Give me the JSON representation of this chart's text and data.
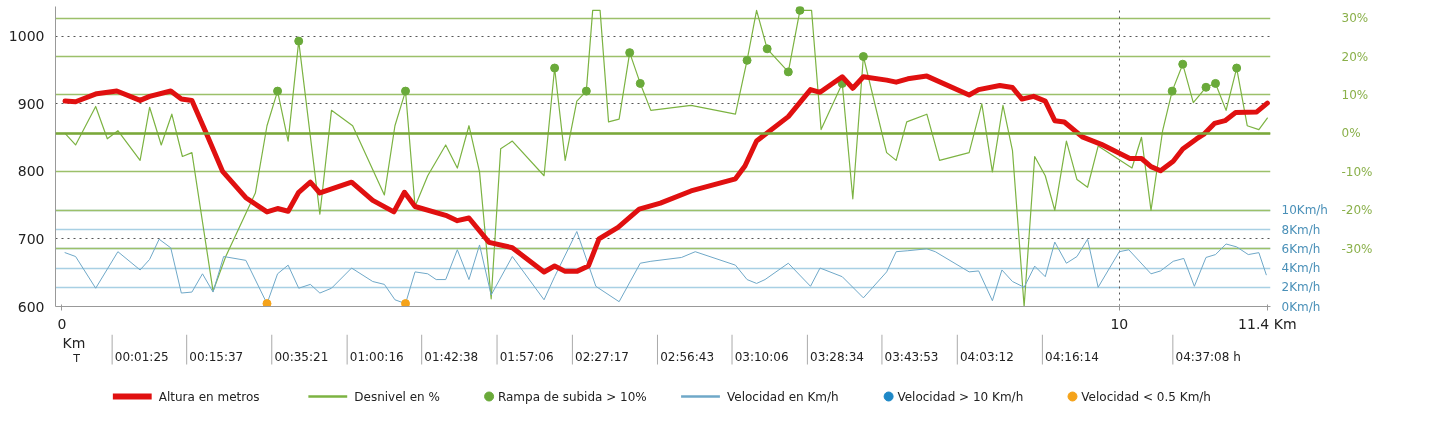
{
  "chart_data": {
    "type": "line",
    "xlim": [
      -0.06,
      11.43
    ],
    "xticks": [
      0,
      10,
      {
        "value": 11.4,
        "label": "11.4 Km"
      }
    ],
    "ylim": [
      600,
      1044
    ],
    "yticks": [
      600,
      700,
      800,
      900,
      1000
    ],
    "y2lim": [
      -45,
      33
    ],
    "y2ticks": [
      {
        "value": 30,
        "label": "30%"
      },
      {
        "value": 20,
        "label": "20%"
      },
      {
        "value": 10,
        "label": "10%"
      },
      {
        "value": 0,
        "label": "0%"
      },
      {
        "value": -10,
        "label": "-10%"
      },
      {
        "value": -20,
        "label": "-20%"
      },
      {
        "value": -30,
        "label": "-30%"
      }
    ],
    "y3lim": [
      0,
      31.2
    ],
    "y3ticks": [
      {
        "value": 10,
        "label": "10Km/h"
      },
      {
        "value": 8,
        "label": "8Km/h"
      },
      {
        "value": 6,
        "label": "6Km/h"
      },
      {
        "value": 4,
        "label": "4Km/h"
      },
      {
        "value": 2,
        "label": "2Km/h"
      },
      {
        "value": 0,
        "label": "0Km/h"
      }
    ],
    "grid": true,
    "legend": "bottom",
    "ref_lines": [
      {
        "axis": "y2",
        "value": 0,
        "color": "#7aa83a"
      }
    ],
    "annotations": [
      "Km",
      "T",
      "00:01:25",
      "00:15:37",
      "00:35:21",
      "01:00:16",
      "01:42:38",
      "01:57:06",
      "02:27:17",
      "02:56:43",
      "03:10:06",
      "03:28:34",
      "03:43:53",
      "04:03:12",
      "04:16:14",
      "04:37:08 h"
    ],
    "series": [
      {
        "name": "Altura en metros",
        "type": "line",
        "axis": "y",
        "color": "#e01010",
        "x": [
          0.03,
          0.13,
          0.33,
          0.52,
          0.74,
          0.83,
          1.03,
          1.13,
          1.23,
          1.37,
          1.52,
          1.74,
          1.94,
          2.04,
          2.14,
          2.24,
          2.35,
          2.44,
          2.74,
          2.94,
          3.14,
          3.24,
          3.34,
          3.63,
          3.74,
          3.85,
          4.04,
          4.26,
          4.56,
          4.66,
          4.76,
          4.87,
          4.98,
          5.08,
          5.26,
          5.46,
          5.66,
          5.95,
          6.37,
          6.46,
          6.57,
          6.87,
          7.08,
          7.17,
          7.38,
          7.48,
          7.58,
          7.8,
          7.89,
          8.0,
          8.18,
          8.58,
          8.67,
          8.87,
          8.99,
          9.08,
          9.19,
          9.3,
          9.39,
          9.48,
          9.65,
          9.83,
          10.1,
          10.21,
          10.3,
          10.39,
          10.51,
          10.6,
          10.73,
          10.8,
          10.9,
          11.0,
          11.1,
          11.3,
          11.4
        ],
        "values": [
          904,
          903,
          915,
          919,
          905,
          911,
          919,
          907,
          905,
          855,
          800,
          761,
          740,
          745,
          741,
          769,
          784,
          768,
          784,
          757,
          740,
          769,
          748,
          735,
          727,
          731,
          695,
          687,
          651,
          660,
          652,
          652,
          660,
          700,
          717,
          744,
          753,
          771,
          789,
          808,
          845,
          881,
          921,
          917,
          940,
          923,
          940,
          935,
          932,
          937,
          941,
          913,
          921,
          927,
          924,
          907,
          911,
          904,
          875,
          873,
          851,
          840,
          819,
          819,
          807,
          801,
          815,
          833,
          848,
          855,
          871,
          875,
          887,
          888,
          901
        ]
      },
      {
        "name": "Desnivel en %",
        "type": "line",
        "axis": "y2",
        "color": "#7cb342",
        "x": [
          0.03,
          0.13,
          0.32,
          0.43,
          0.53,
          0.74,
          0.83,
          0.94,
          1.04,
          1.14,
          1.23,
          1.43,
          1.55,
          1.83,
          1.94,
          2.04,
          2.14,
          2.24,
          2.44,
          2.55,
          2.75,
          3.05,
          3.15,
          3.25,
          3.34,
          3.46,
          3.63,
          3.74,
          3.85,
          3.95,
          4.06,
          4.15,
          4.26,
          4.56,
          4.66,
          4.76,
          4.87,
          4.96,
          5.02,
          5.09,
          5.17,
          5.27,
          5.37,
          5.47,
          5.57,
          5.95,
          6.37,
          6.48,
          6.57,
          6.67,
          6.87,
          6.98,
          7.09,
          7.18,
          7.38,
          7.48,
          7.58,
          7.8,
          7.89,
          7.99,
          8.18,
          8.3,
          8.58,
          8.7,
          8.8,
          8.9,
          8.99,
          9.1,
          9.2,
          9.3,
          9.39,
          9.5,
          9.6,
          9.7,
          9.8,
          10.12,
          10.21,
          10.3,
          10.41,
          10.5,
          10.6,
          10.7,
          10.82,
          10.91,
          11.01,
          11.11,
          11.21,
          11.32,
          11.4
        ],
        "values": [
          0,
          -3,
          7,
          -1.4,
          0.7,
          -7,
          6.8,
          -3,
          5,
          -6,
          -5,
          -41,
          -32,
          -15.5,
          2,
          11,
          -2,
          24,
          -21,
          6,
          2,
          -16,
          2,
          11,
          -19,
          -11,
          -3,
          -9,
          2,
          -10,
          -43,
          -4,
          -2,
          -11,
          17,
          -7,
          8.4,
          11,
          32,
          32,
          3,
          3.7,
          21,
          13,
          6,
          7.3,
          5,
          19,
          32,
          22,
          16,
          32,
          32,
          1,
          13,
          -17,
          20,
          -5,
          -7,
          3,
          5,
          -7,
          -5,
          7.7,
          -10,
          7.3,
          -4.5,
          -45,
          -6,
          -11,
          -20,
          -2,
          -12,
          -14,
          -3.3,
          -9,
          -1,
          -20,
          0.7,
          11,
          18,
          8,
          12,
          13,
          6,
          17,
          2,
          1,
          4
        ]
      },
      {
        "name": "Rampa de subida > 10%",
        "type": "scatter",
        "marker": "circle",
        "axis": "y2",
        "color": "#6aaa3a",
        "x": [
          2.04,
          2.24,
          3.25,
          4.66,
          4.96,
          5.37,
          5.47,
          6.48,
          6.67,
          6.87,
          6.98,
          7.38,
          7.58,
          10.5,
          10.6,
          10.82,
          10.91,
          11.11
        ],
        "values": [
          11,
          24,
          11,
          17,
          11,
          21,
          13,
          19,
          22,
          16,
          32,
          13,
          20,
          11,
          18,
          12,
          13,
          17
        ]
      },
      {
        "name": "Velocidad en Km/h",
        "type": "line",
        "axis": "y3",
        "color": "#6fa8c8",
        "x": [
          0.03,
          0.13,
          0.32,
          0.53,
          0.74,
          0.83,
          0.92,
          1.03,
          1.13,
          1.23,
          1.33,
          1.43,
          1.53,
          1.74,
          1.94,
          2.04,
          2.14,
          2.24,
          2.35,
          2.44,
          2.55,
          2.74,
          2.94,
          3.05,
          3.15,
          3.25,
          3.34,
          3.46,
          3.54,
          3.63,
          3.74,
          3.85,
          3.95,
          4.06,
          4.26,
          4.56,
          4.66,
          4.87,
          5.05,
          5.27,
          5.47,
          5.57,
          5.86,
          5.99,
          6.37,
          6.48,
          6.57,
          6.65,
          6.87,
          7.08,
          7.17,
          7.38,
          7.58,
          7.8,
          7.89,
          8.0,
          8.18,
          8.26,
          8.58,
          8.67,
          8.8,
          8.89,
          8.99,
          9.1,
          9.2,
          9.3,
          9.39,
          9.5,
          9.6,
          9.7,
          9.8,
          10.0,
          10.09,
          10.3,
          10.39,
          10.51,
          10.61,
          10.71,
          10.82,
          10.91,
          11.01,
          11.11,
          11.22,
          11.32,
          11.39
        ],
        "values": [
          5.6,
          5.2,
          1.9,
          5.7,
          3.8,
          4.9,
          7.0,
          6.1,
          1.4,
          1.5,
          3.4,
          1.5,
          5.2,
          4.8,
          0.3,
          3.4,
          4.3,
          1.9,
          2.3,
          1.4,
          1.9,
          4.0,
          2.6,
          2.3,
          0.7,
          0.3,
          3.6,
          3.4,
          2.8,
          2.8,
          5.9,
          2.8,
          6.4,
          1.2,
          5.2,
          0.7,
          3.1,
          7.8,
          2.1,
          0.5,
          4.5,
          4.7,
          5.1,
          5.7,
          4.3,
          2.8,
          2.4,
          2.8,
          4.5,
          2.1,
          4.0,
          3.1,
          0.9,
          3.6,
          5.7,
          5.8,
          6.0,
          5.7,
          3.6,
          3.7,
          0.6,
          3.8,
          2.6,
          2.0,
          4.2,
          3.1,
          6.7,
          4.5,
          5.2,
          7.0,
          2.0,
          5.7,
          5.9,
          3.4,
          3.7,
          4.7,
          5.0,
          2.1,
          5.1,
          5.4,
          6.5,
          6.2,
          5.4,
          5.6,
          3.3
        ]
      },
      {
        "name": "Velocidad > 10 Km/h",
        "type": "scatter",
        "marker": "circle",
        "axis": "y3",
        "color": "#1e88c7"
      },
      {
        "name": "Velocidad < 0.5 Km/h",
        "type": "scatter",
        "marker": "circle",
        "axis": "y3",
        "color": "#f5a31a",
        "x": [
          1.94,
          3.25
        ],
        "values": [
          0.3,
          0.3
        ]
      }
    ]
  }
}
